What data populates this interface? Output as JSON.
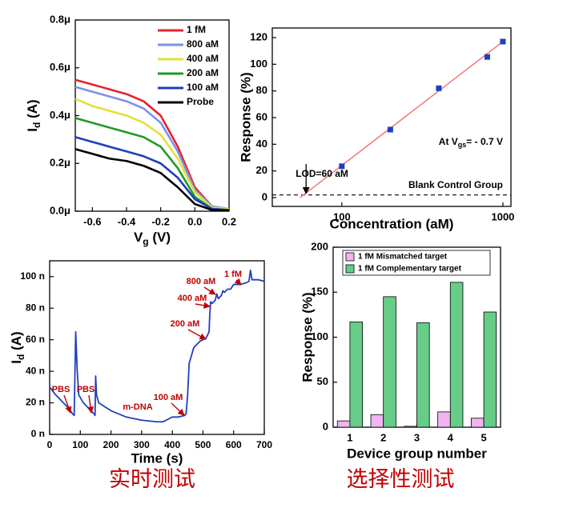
{
  "chart_data": [
    {
      "type": "line",
      "x": [
        -0.7,
        -0.6,
        -0.5,
        -0.4,
        -0.3,
        -0.2,
        -0.1,
        0,
        0.1,
        0.2
      ],
      "xlim": [
        -0.7,
        0.2
      ],
      "xticks": [
        -0.6,
        -0.4,
        -0.2,
        {
          "value": 0,
          "label": "0.0"
        },
        0.2
      ],
      "ylim": [
        0,
        8e-07
      ],
      "yticks": [
        {
          "value": 0,
          "label": "0.0μ"
        },
        {
          "value": 2e-07,
          "label": "0.2μ"
        },
        {
          "value": 4e-07,
          "label": "0.4μ"
        },
        {
          "value": 6e-07,
          "label": "0.6μ"
        },
        {
          "value": 8e-07,
          "label": "0.8μ"
        }
      ],
      "xlabel": {
        "text": "V",
        "sub": "g",
        "rest": " (V)"
      },
      "ylabel": {
        "text": "I",
        "sub": "d",
        "rest": " (A)"
      },
      "legend": "upper right",
      "series": [
        {
          "name": "1 fM",
          "color": "#e8232a",
          "values": [
            5.5e-07,
            5.3e-07,
            5.1e-07,
            4.9e-07,
            4.6e-07,
            4e-07,
            2.7e-07,
            1e-07,
            2e-08,
            1e-08
          ]
        },
        {
          "name": "800 aM",
          "color": "#7b93e8",
          "values": [
            5.2e-07,
            5e-07,
            4.8e-07,
            4.6e-07,
            4.3e-07,
            3.7e-07,
            2.5e-07,
            9e-08,
            2e-08,
            1e-08
          ]
        },
        {
          "name": "400 aM",
          "color": "#e3e03a",
          "values": [
            4.7e-07,
            4.4e-07,
            4.2e-07,
            4e-07,
            3.7e-07,
            3.2e-07,
            2.2e-07,
            8e-08,
            1.5e-08,
            1e-08
          ]
        },
        {
          "name": "200 aM",
          "color": "#1f9a2a",
          "values": [
            3.9e-07,
            3.7e-07,
            3.5e-07,
            3.3e-07,
            3.1e-07,
            2.7e-07,
            1.8e-07,
            6e-08,
            1e-08,
            5e-09
          ]
        },
        {
          "name": "100 aM",
          "color": "#1f3fbf",
          "values": [
            3.1e-07,
            2.9e-07,
            2.7e-07,
            2.5e-07,
            2.3e-07,
            2e-07,
            1.4e-07,
            5e-08,
            1e-08,
            5e-09
          ]
        },
        {
          "name": "Probe",
          "color": "#000000",
          "values": [
            2.6e-07,
            2.4e-07,
            2.2e-07,
            2.1e-07,
            1.9e-07,
            1.6e-07,
            1e-07,
            3e-08,
            5e-09,
            3e-09
          ]
        }
      ]
    },
    {
      "type": "scatter",
      "xscale": "log",
      "x": [
        100,
        200,
        400,
        800,
        1000
      ],
      "values": [
        23.5,
        51,
        82,
        105.5,
        117
      ],
      "color": "#1f3fbf",
      "xlim": [
        37,
        1122
      ],
      "xticks": [
        100,
        1000
      ],
      "ylim": [
        -6.6,
        127.2
      ],
      "yticks": [
        0,
        20,
        40,
        60,
        80,
        100,
        120
      ],
      "xlabel": "Concentration (aM)",
      "ylabel": "Response (%)",
      "fit": {
        "x": [
          55,
          1000
        ],
        "values": [
          0,
          117
        ],
        "color": "#f08080"
      },
      "baseline": 2,
      "baseline_label": "Blank Control Group",
      "lod": 60,
      "lod_label": "LOD=60 aM",
      "condition": {
        "text": "At V",
        "sub": "gs",
        "rest": "= - 0.7 V"
      }
    },
    {
      "type": "line",
      "x": [
        0,
        20,
        40,
        60,
        75,
        80,
        85,
        90,
        95,
        110,
        130,
        145,
        148,
        150,
        153,
        160,
        200,
        250,
        300,
        350,
        370,
        380,
        400,
        420,
        440,
        445,
        450,
        455,
        470,
        490,
        510,
        520,
        522,
        525,
        530,
        540,
        545,
        550,
        560,
        565,
        570,
        580,
        590,
        600,
        620,
        640,
        650,
        655,
        660,
        680,
        700
      ],
      "xlim": [
        0,
        700
      ],
      "xticks": [
        0,
        100,
        200,
        300,
        400,
        500,
        600,
        700
      ],
      "ylim": [
        0,
        1.1e-07
      ],
      "yticks": [
        {
          "value": 0,
          "label": "0 n"
        },
        {
          "value": 2e-08,
          "label": "20 n"
        },
        {
          "value": 4e-08,
          "label": "40 n"
        },
        {
          "value": 6e-08,
          "label": "60 n"
        },
        {
          "value": 8e-08,
          "label": "80 n"
        },
        {
          "value": 1e-07,
          "label": "100 n"
        }
      ],
      "xlabel": "Time (s)",
      "ylabel": {
        "text": "I",
        "sub": "d",
        "rest": " (A)"
      },
      "series": [
        {
          "color": "#1f3fbf",
          "values": [
            3e-08,
            2.5e-08,
            2.1e-08,
            1.7e-08,
            1.3e-08,
            1.2e-08,
            6.5e-08,
            4e-08,
            2.5e-08,
            2e-08,
            1.6e-08,
            1.3e-08,
            1.2e-08,
            3.7e-08,
            2.5e-08,
            2e-08,
            1.5e-08,
            1.1e-08,
            9e-09,
            8e-09,
            8e-09,
            9e-09,
            1.1e-08,
            1.1e-08,
            1.2e-08,
            1.3e-08,
            2.5e-08,
            4.5e-08,
            5.5e-08,
            5.9e-08,
            6.1e-08,
            6.5e-08,
            7.5e-08,
            8.4e-08,
            8.3e-08,
            8.5e-08,
            8.9e-08,
            8.6e-08,
            8.8e-08,
            9.1e-08,
            9e-08,
            9.2e-08,
            9.2e-08,
            9.5e-08,
            9.5e-08,
            9.6e-08,
            9.7e-08,
            1.04e-07,
            9.8e-08,
            9.8e-08,
            9.7e-08
          ]
        }
      ],
      "annotations": [
        "PBS",
        "PBS",
        "m-DNA",
        "100 aM",
        "200 aM",
        "400 aM",
        "800 aM",
        "1 fM"
      ]
    },
    {
      "type": "bar",
      "categories": [
        "1",
        "2",
        "3",
        "4",
        "5"
      ],
      "ylim": [
        0,
        200
      ],
      "yticks": [
        0,
        50,
        100,
        150,
        200
      ],
      "xlabel": "Device group number",
      "ylabel": "Response (%)",
      "legend": "upper left",
      "series": [
        {
          "name": "1 fM Mismatched target",
          "color": "#f0b4f0",
          "values": [
            7,
            14,
            1,
            17,
            10
          ]
        },
        {
          "name": "1 fM Complementary target",
          "color": "#66cc88",
          "values": [
            117,
            145,
            116,
            161,
            128
          ]
        }
      ]
    }
  ],
  "captions": [
    "实时测试",
    "选择性测试"
  ]
}
